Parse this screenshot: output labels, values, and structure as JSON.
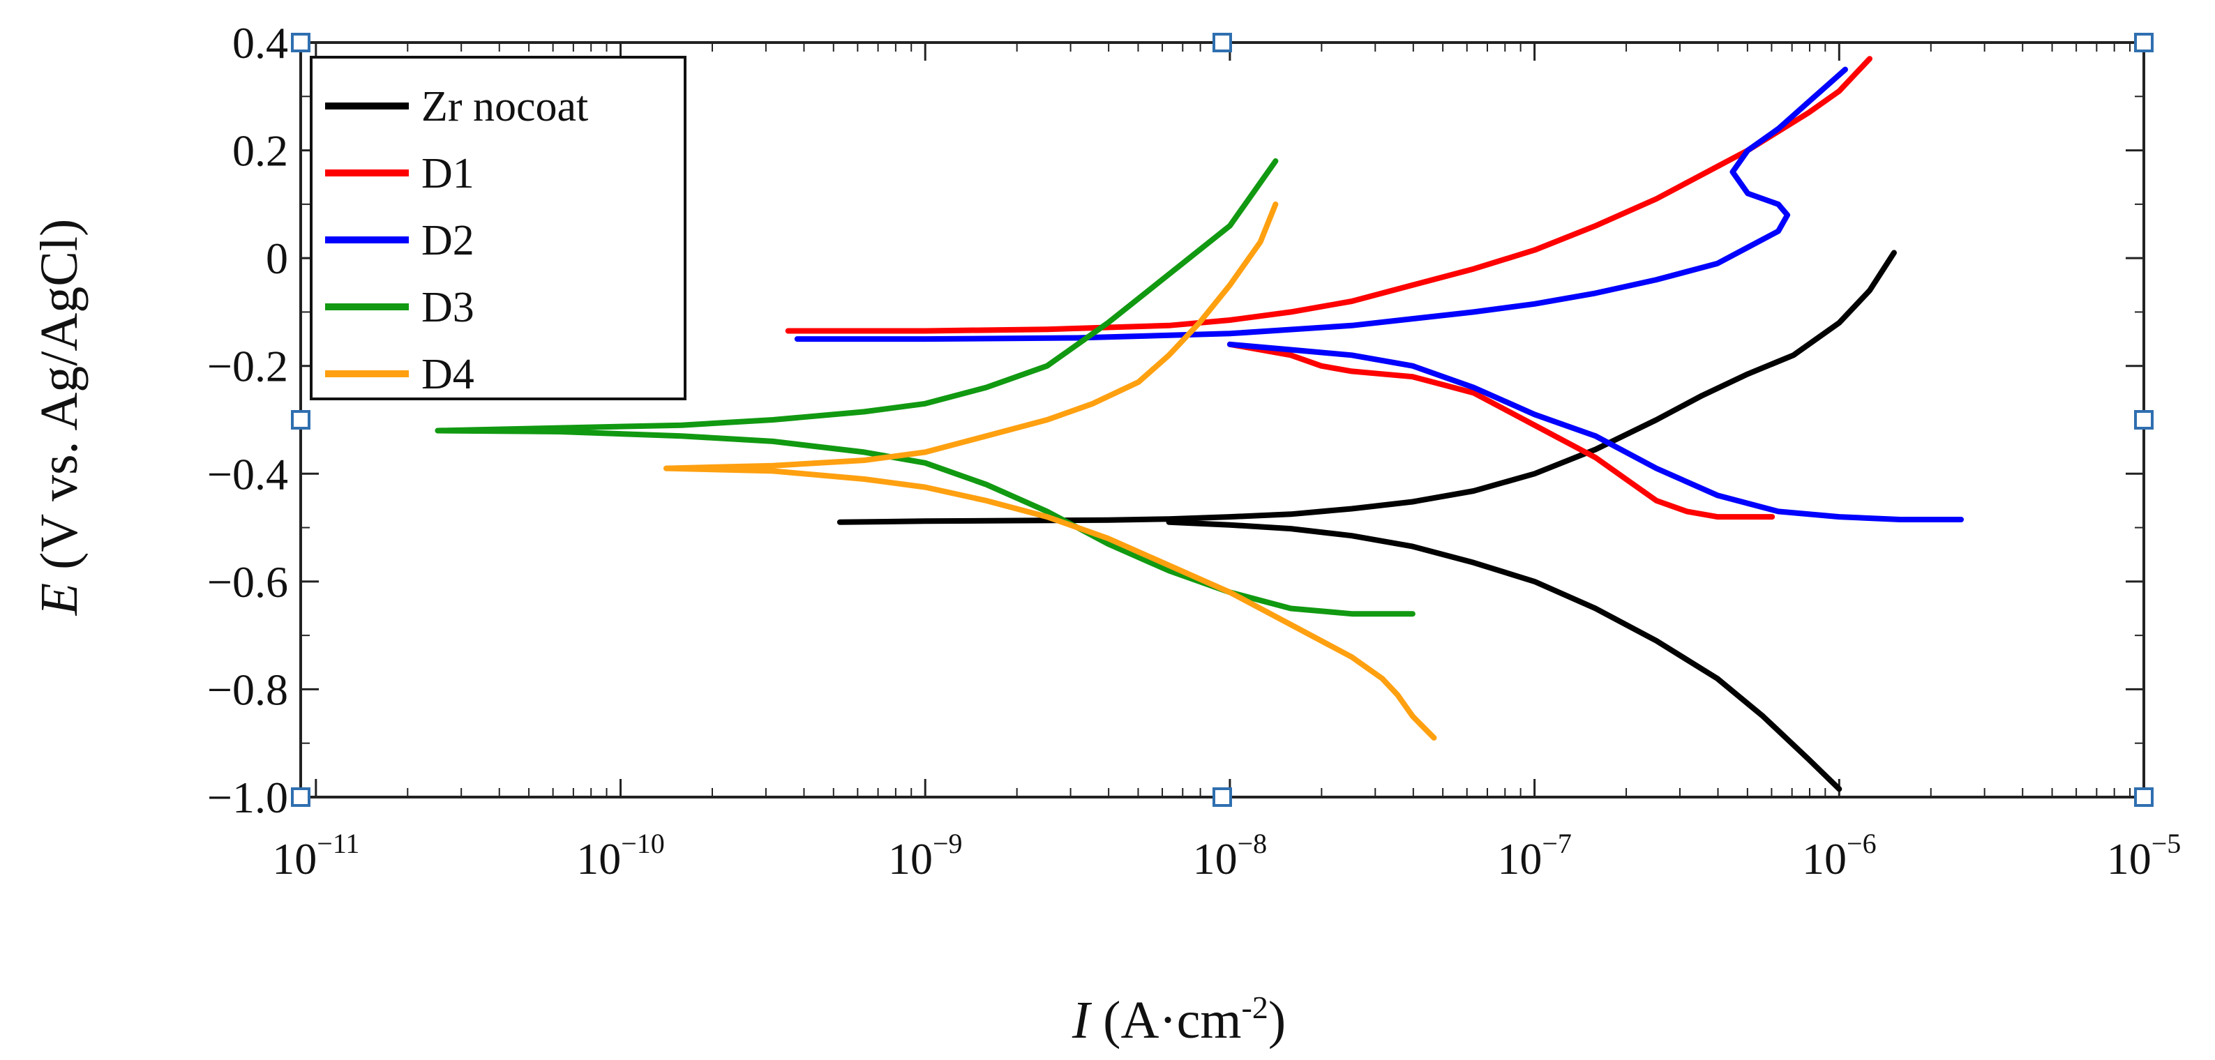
{
  "chart_data": {
    "type": "line",
    "title": "",
    "xlabel": "I (A·cm-2)",
    "xlabel_italic": "I",
    "xlabel_rest": " (A·cm",
    "xlabel_sup": "-2",
    "xlabel_close": ")",
    "ylabel": "E (V vs. Ag/AgCl)",
    "ylabel_italic": "E",
    "ylabel_rest": " (V vs. Ag/AgCl)",
    "xscale": "log",
    "xlim_exp": [
      -11.05,
      -5
    ],
    "ylim": [
      -1.0,
      0.4
    ],
    "x_ticks": [
      {
        "exp": -11,
        "label_base": "10",
        "label_exp": "−11"
      },
      {
        "exp": -10,
        "label_base": "10",
        "label_exp": "−10"
      },
      {
        "exp": -9,
        "label_base": "10",
        "label_exp": "−9"
      },
      {
        "exp": -8,
        "label_base": "10",
        "label_exp": "−8"
      },
      {
        "exp": -7,
        "label_base": "10",
        "label_exp": "−7"
      },
      {
        "exp": -6,
        "label_base": "10",
        "label_exp": "−6"
      },
      {
        "exp": -5,
        "label_base": "10",
        "label_exp": "−5"
      }
    ],
    "y_ticks": [
      {
        "value": 0.4,
        "label": "0.4"
      },
      {
        "value": 0.2,
        "label": "0.2"
      },
      {
        "value": 0.0,
        "label": "0"
      },
      {
        "value": -0.2,
        "label": "−0.2"
      },
      {
        "value": -0.4,
        "label": "−0.4"
      },
      {
        "value": -0.6,
        "label": "−0.6"
      },
      {
        "value": -0.8,
        "label": "−0.8"
      },
      {
        "value": -1.0,
        "label": "−1.0"
      }
    ],
    "legend_position": "top-left",
    "series": [
      {
        "name": "Zr nocoat",
        "color": "#000000",
        "x_exp": [
          -9.28,
          -9.0,
          -8.7,
          -8.4,
          -8.2,
          -8.0,
          -7.8,
          -7.6,
          -7.4,
          -7.2,
          -7.0,
          -6.8,
          -6.6,
          -6.45,
          -6.3,
          -6.15,
          -6.0,
          -5.9,
          -5.82
        ],
        "y": [
          -0.49,
          -0.488,
          -0.487,
          -0.486,
          -0.484,
          -0.48,
          -0.475,
          -0.465,
          -0.452,
          -0.432,
          -0.4,
          -0.355,
          -0.3,
          -0.255,
          -0.215,
          -0.18,
          -0.12,
          -0.06,
          0.01
        ],
        "x2_exp": [
          -8.2,
          -8.0,
          -7.8,
          -7.6,
          -7.4,
          -7.2,
          -7.0,
          -6.8,
          -6.6,
          -6.4,
          -6.25,
          -6.1,
          -6.0
        ],
        "y2": [
          -0.49,
          -0.495,
          -0.502,
          -0.515,
          -0.535,
          -0.565,
          -0.6,
          -0.65,
          -0.71,
          -0.78,
          -0.85,
          -0.93,
          -0.985
        ]
      },
      {
        "name": "D1",
        "color": "#ff0000",
        "x_exp": [
          -9.45,
          -9.0,
          -8.6,
          -8.2,
          -8.0,
          -7.8,
          -7.6,
          -7.4,
          -7.2,
          -7.0,
          -6.8,
          -6.6,
          -6.4,
          -6.3,
          -6.2,
          -6.1,
          -6.0,
          -5.9
        ],
        "y": [
          -0.135,
          -0.135,
          -0.132,
          -0.125,
          -0.115,
          -0.1,
          -0.08,
          -0.05,
          -0.02,
          0.015,
          0.06,
          0.11,
          0.17,
          0.2,
          0.235,
          0.27,
          0.31,
          0.37
        ],
        "x2_exp": [
          -8.0,
          -7.8,
          -7.7,
          -7.6,
          -7.5,
          -7.4,
          -7.3,
          -7.2,
          -7.1,
          -7.0,
          -6.9,
          -6.8,
          -6.7,
          -6.6,
          -6.5,
          -6.4,
          -6.3,
          -6.22
        ],
        "y2": [
          -0.16,
          -0.18,
          -0.2,
          -0.21,
          -0.215,
          -0.22,
          -0.235,
          -0.25,
          -0.28,
          -0.31,
          -0.34,
          -0.37,
          -0.41,
          -0.45,
          -0.47,
          -0.48,
          -0.48,
          -0.48
        ]
      },
      {
        "name": "D2",
        "color": "#0000ff",
        "x_exp": [
          -9.42,
          -9.0,
          -8.5,
          -8.0,
          -7.6,
          -7.2,
          -7.0,
          -6.8,
          -6.6,
          -6.4,
          -6.3,
          -6.2,
          -6.17,
          -6.2,
          -6.3,
          -6.35,
          -6.3,
          -6.2,
          -6.1,
          -5.98
        ],
        "y": [
          -0.15,
          -0.15,
          -0.148,
          -0.14,
          -0.125,
          -0.1,
          -0.085,
          -0.065,
          -0.04,
          -0.01,
          0.02,
          0.05,
          0.08,
          0.1,
          0.12,
          0.16,
          0.2,
          0.24,
          0.29,
          0.35
        ],
        "x2_exp": [
          -8.0,
          -7.8,
          -7.6,
          -7.4,
          -7.2,
          -7.0,
          -6.8,
          -6.6,
          -6.4,
          -6.2,
          -6.0,
          -5.8,
          -5.6
        ],
        "y2": [
          -0.16,
          -0.17,
          -0.18,
          -0.2,
          -0.24,
          -0.29,
          -0.33,
          -0.39,
          -0.44,
          -0.47,
          -0.48,
          -0.485,
          -0.485
        ]
      },
      {
        "name": "D3",
        "color": "#119911",
        "x_exp": [
          -10.6,
          -10.2,
          -9.8,
          -9.5,
          -9.2,
          -9.0,
          -8.8,
          -8.6,
          -8.4,
          -8.2,
          -8.0,
          -7.9,
          -7.85
        ],
        "y": [
          -0.32,
          -0.315,
          -0.31,
          -0.3,
          -0.285,
          -0.27,
          -0.24,
          -0.2,
          -0.12,
          -0.03,
          0.06,
          0.14,
          0.18
        ],
        "x2_exp": [
          -10.6,
          -10.2,
          -9.8,
          -9.5,
          -9.2,
          -9.0,
          -8.8,
          -8.6,
          -8.4,
          -8.2,
          -8.0,
          -7.8,
          -7.6,
          -7.4
        ],
        "y2": [
          -0.32,
          -0.322,
          -0.33,
          -0.34,
          -0.36,
          -0.38,
          -0.42,
          -0.47,
          -0.53,
          -0.58,
          -0.62,
          -0.65,
          -0.66,
          -0.66
        ]
      },
      {
        "name": "D4",
        "color": "#ffa010",
        "x_exp": [
          -9.85,
          -9.5,
          -9.2,
          -9.0,
          -8.8,
          -8.6,
          -8.45,
          -8.3,
          -8.2,
          -8.1,
          -8.0,
          -7.9,
          -7.85
        ],
        "y": [
          -0.39,
          -0.385,
          -0.375,
          -0.36,
          -0.33,
          -0.3,
          -0.27,
          -0.23,
          -0.18,
          -0.12,
          -0.05,
          0.03,
          0.1
        ],
        "x2_exp": [
          -9.85,
          -9.5,
          -9.2,
          -9.0,
          -8.8,
          -8.6,
          -8.4,
          -8.2,
          -8.0,
          -7.8,
          -7.6,
          -7.5,
          -7.45,
          -7.4,
          -7.33
        ],
        "y2": [
          -0.39,
          -0.395,
          -0.41,
          -0.425,
          -0.45,
          -0.48,
          -0.52,
          -0.57,
          -0.62,
          -0.68,
          -0.74,
          -0.78,
          -0.81,
          -0.85,
          -0.89
        ]
      }
    ]
  }
}
